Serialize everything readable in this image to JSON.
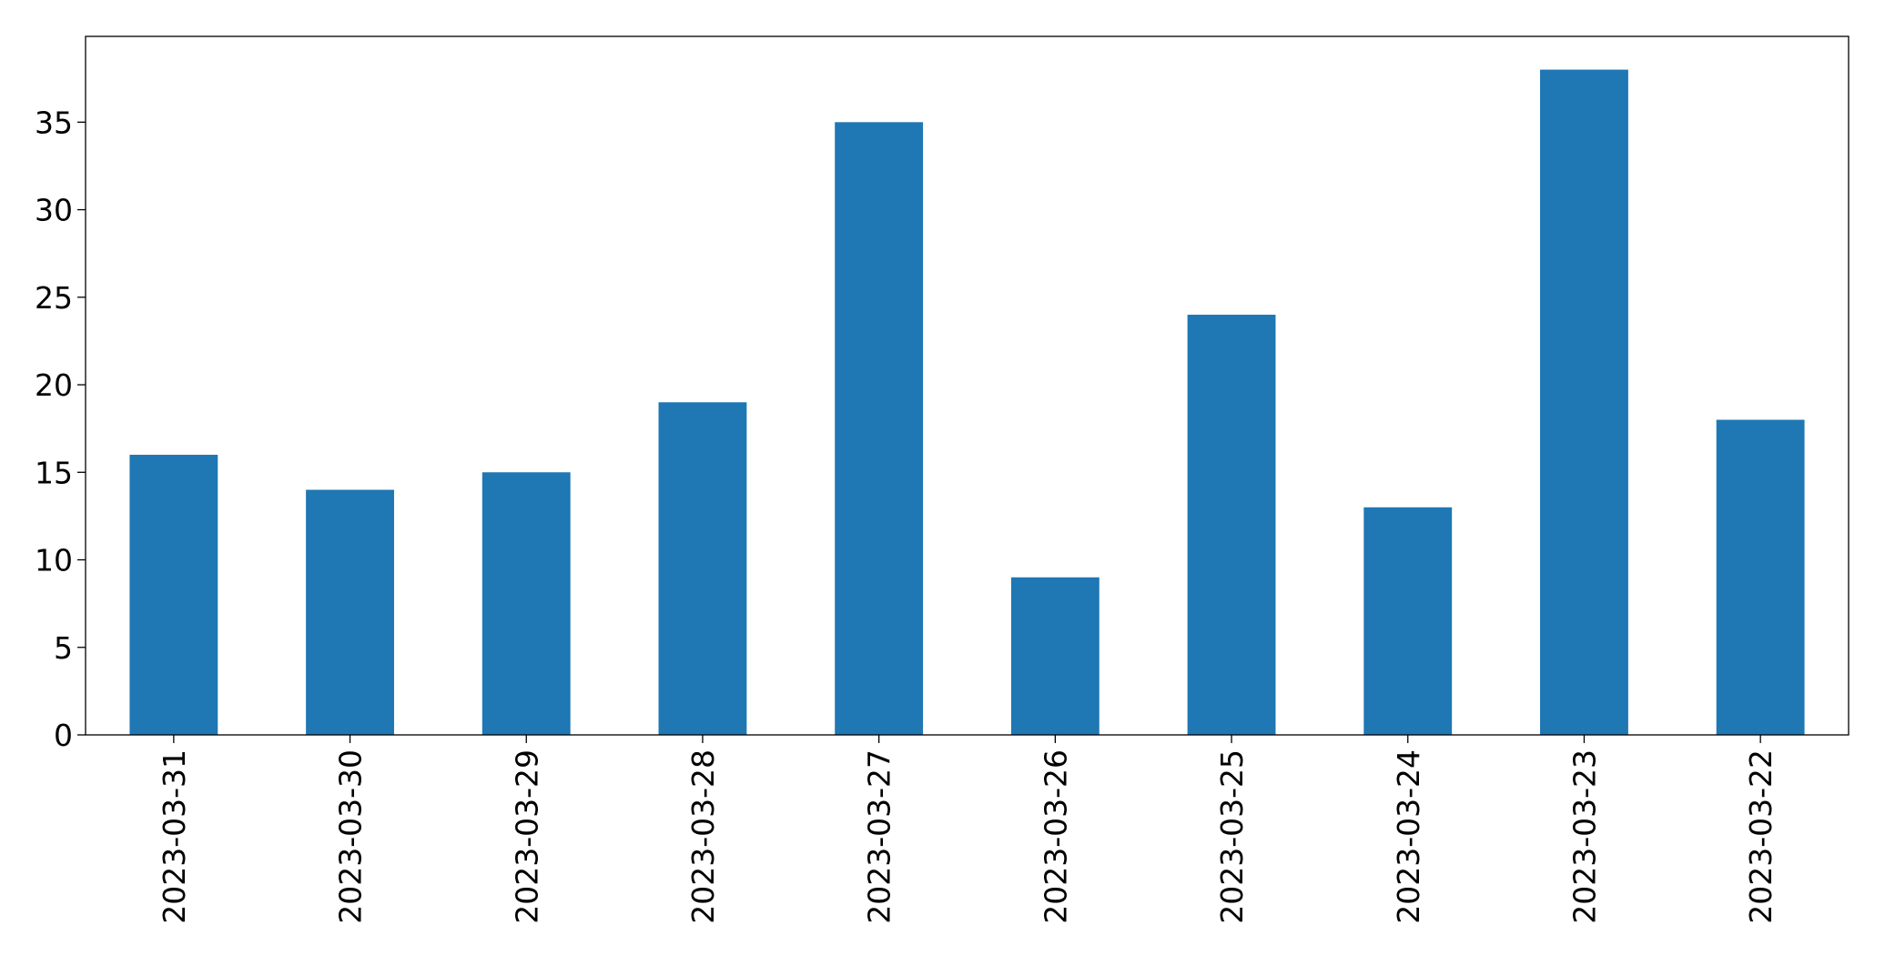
{
  "chart_data": {
    "type": "bar",
    "categories": [
      "2023-03-31",
      "2023-03-30",
      "2023-03-29",
      "2023-03-28",
      "2023-03-27",
      "2023-03-26",
      "2023-03-25",
      "2023-03-24",
      "2023-03-23",
      "2023-03-22"
    ],
    "values": [
      16,
      14,
      15,
      19,
      35,
      9,
      24,
      13,
      38,
      18
    ],
    "color": "#1f77b4",
    "ylim": [
      0,
      39.9
    ],
    "yticks": [
      0,
      5,
      10,
      15,
      20,
      25,
      30,
      35
    ],
    "grid": false
  }
}
